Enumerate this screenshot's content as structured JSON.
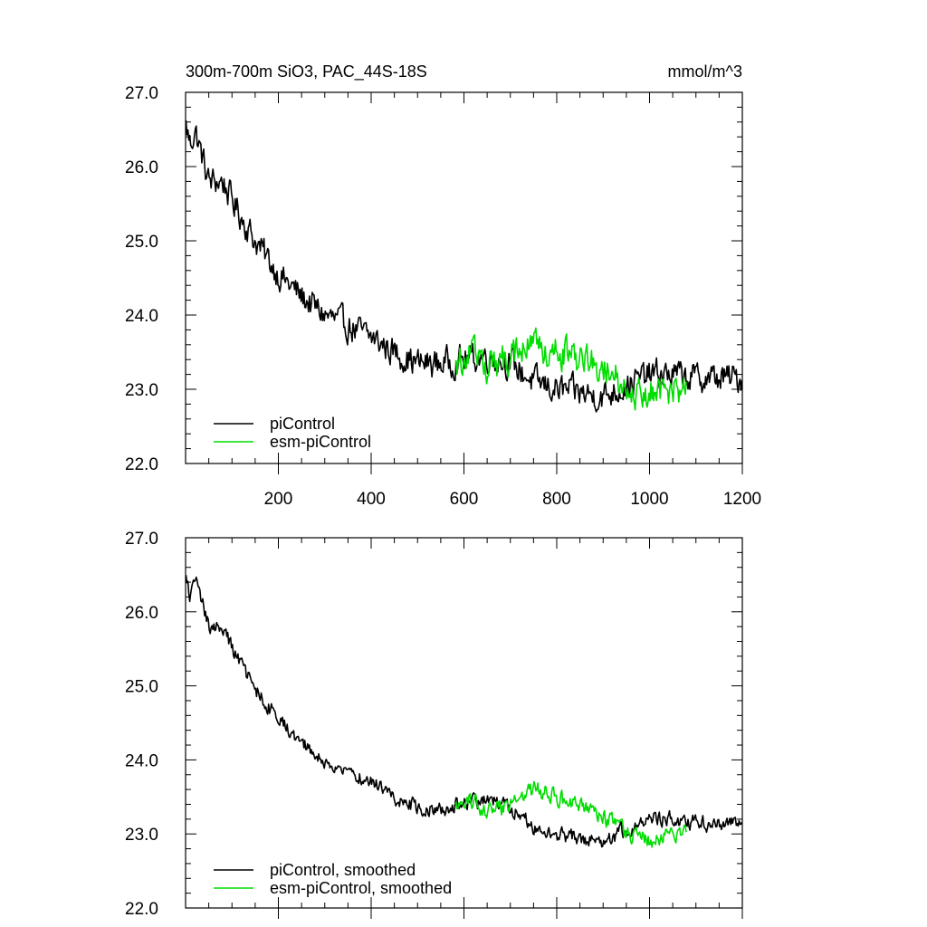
{
  "chart_data": [
    {
      "type": "line",
      "title": "300m-700m SiO3, PAC_44S-18S",
      "units_label": "mmol/m^3",
      "xlim": [
        0,
        1200
      ],
      "ylim": [
        22.0,
        27.0
      ],
      "x_ticks": [
        200,
        400,
        600,
        800,
        1000,
        1200
      ],
      "x_tick_labels": [
        "200",
        "400",
        "600",
        "800",
        "1000",
        "1200"
      ],
      "y_ticks": [
        22.0,
        23.0,
        24.0,
        25.0,
        26.0,
        27.0
      ],
      "y_tick_labels": [
        "22.0",
        "23.0",
        "24.0",
        "25.0",
        "26.0",
        "27.0"
      ],
      "legend_position": "bottom-left",
      "series": [
        {
          "name": "piControl",
          "color": "#000000",
          "x_range": [
            1,
            1200
          ],
          "noise": 0.17,
          "x": [
            1,
            10,
            20,
            50,
            80,
            100,
            150,
            200,
            250,
            300,
            350,
            400,
            450,
            500,
            550,
            600,
            650,
            700,
            750,
            800,
            850,
            900,
            950,
            1000,
            1050,
            1100,
            1150,
            1200
          ],
          "y": [
            26.55,
            26.3,
            26.5,
            25.8,
            25.8,
            25.55,
            25.0,
            24.55,
            24.25,
            24.0,
            23.85,
            23.7,
            23.5,
            23.35,
            23.35,
            23.4,
            23.45,
            23.35,
            23.1,
            23.0,
            22.95,
            22.9,
            23.05,
            23.2,
            23.2,
            23.15,
            23.15,
            23.15
          ]
        },
        {
          "name": "esm-piControl",
          "color": "#00dd00",
          "x_range": [
            581,
            1080
          ],
          "noise": 0.19,
          "x": [
            581,
            600,
            620,
            650,
            680,
            700,
            720,
            750,
            780,
            800,
            850,
            900,
            920,
            950,
            1000,
            1050,
            1080
          ],
          "y": [
            23.3,
            23.45,
            23.5,
            23.3,
            23.35,
            23.45,
            23.5,
            23.6,
            23.55,
            23.5,
            23.4,
            23.3,
            23.2,
            23.0,
            22.95,
            23.0,
            23.05
          ]
        }
      ]
    },
    {
      "type": "line",
      "xlim": [
        0,
        1200
      ],
      "ylim": [
        22.0,
        27.0
      ],
      "y_ticks": [
        22.0,
        23.0,
        24.0,
        25.0,
        26.0,
        27.0
      ],
      "y_tick_labels": [
        "22.0",
        "23.0",
        "24.0",
        "25.0",
        "26.0",
        "27.0"
      ],
      "legend_position": "bottom-left",
      "series": [
        {
          "name": "piControl, smoothed",
          "color": "#000000",
          "x_range": [
            1,
            1200
          ],
          "noise": 0.09,
          "x": [
            1,
            10,
            20,
            50,
            80,
            100,
            150,
            200,
            250,
            300,
            350,
            400,
            450,
            500,
            550,
            600,
            650,
            700,
            750,
            800,
            850,
            900,
            950,
            1000,
            1050,
            1100,
            1150,
            1200
          ],
          "y": [
            26.45,
            26.2,
            26.45,
            25.8,
            25.8,
            25.5,
            24.95,
            24.55,
            24.25,
            23.95,
            23.85,
            23.7,
            23.5,
            23.35,
            23.35,
            23.4,
            23.45,
            23.35,
            23.1,
            23.0,
            22.95,
            22.9,
            23.05,
            23.2,
            23.2,
            23.15,
            23.15,
            23.15
          ]
        },
        {
          "name": "esm-piControl, smoothed",
          "color": "#00dd00",
          "x_range": [
            581,
            1080
          ],
          "noise": 0.1,
          "x": [
            581,
            600,
            620,
            650,
            680,
            700,
            720,
            750,
            780,
            800,
            850,
            900,
            920,
            950,
            1000,
            1050,
            1080
          ],
          "y": [
            23.35,
            23.4,
            23.45,
            23.3,
            23.35,
            23.4,
            23.5,
            23.6,
            23.55,
            23.5,
            23.35,
            23.25,
            23.15,
            23.0,
            22.9,
            23.0,
            23.05
          ]
        }
      ]
    }
  ]
}
